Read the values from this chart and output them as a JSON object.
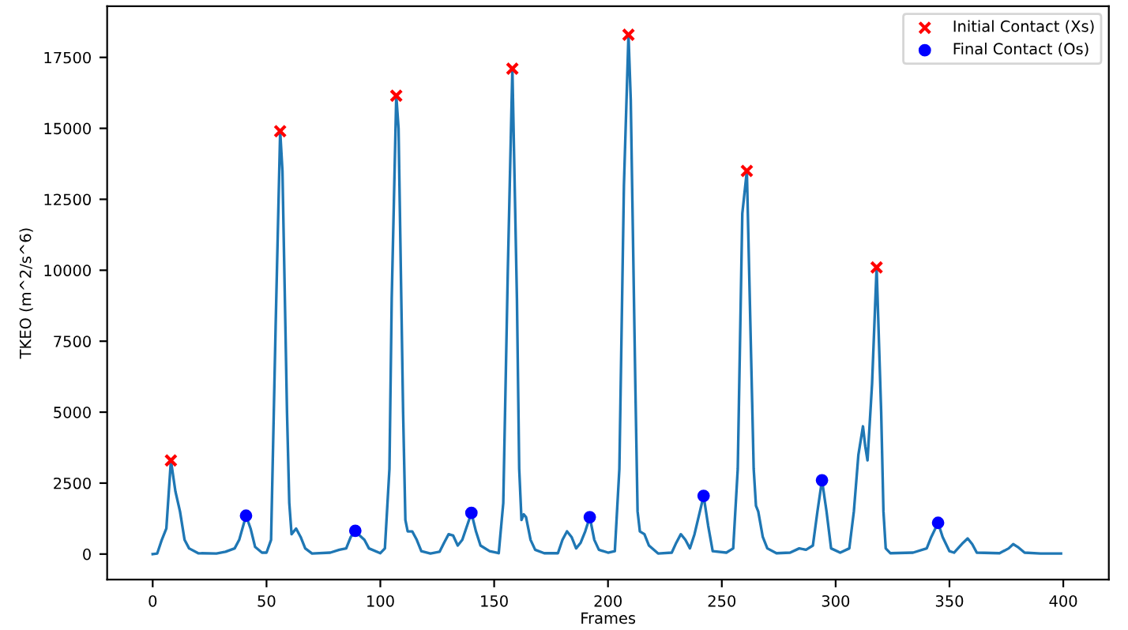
{
  "chart_data": {
    "type": "line",
    "xlabel": "Frames",
    "ylabel": "TKEO (m^2/s^6)",
    "xlim": [
      -20,
      420
    ],
    "ylim": [
      -900,
      19300
    ],
    "xticks": [
      0,
      50,
      100,
      150,
      200,
      250,
      300,
      350,
      400
    ],
    "yticks": [
      0,
      2500,
      5000,
      7500,
      10000,
      12500,
      15000,
      17500
    ],
    "grid": false,
    "legend": "top right",
    "series": [
      {
        "color": "#1f77b4",
        "marker": "none",
        "x": [
          0,
          2,
          4,
          6,
          8,
          10,
          12,
          14,
          16,
          20,
          28,
          32,
          36,
          38,
          41,
          43,
          45,
          48,
          50,
          52,
          54,
          56,
          57,
          59,
          60,
          61,
          63,
          65,
          67,
          70,
          78,
          82,
          85,
          87,
          89,
          91,
          93,
          95,
          100,
          102,
          104,
          105,
          107,
          108,
          110,
          111,
          112,
          114,
          116,
          118,
          122,
          126,
          128,
          130,
          132,
          134,
          136,
          140,
          142,
          144,
          148,
          152,
          154,
          156,
          158,
          160,
          161,
          162,
          163,
          164,
          166,
          168,
          172,
          178,
          180,
          182,
          184,
          186,
          188,
          190,
          192,
          194,
          196,
          200,
          203,
          205,
          207,
          209,
          210,
          212,
          213,
          214,
          216,
          218,
          222,
          228,
          230,
          232,
          234,
          236,
          238,
          242,
          244,
          246,
          252,
          255,
          257,
          259,
          261,
          262,
          264,
          265,
          266,
          268,
          270,
          274,
          280,
          284,
          287,
          290,
          292,
          294,
          296,
          298,
          302,
          306,
          308,
          310,
          312,
          313,
          314,
          316,
          318,
          320,
          321,
          322,
          324,
          334,
          340,
          342,
          345,
          347,
          350,
          352,
          356,
          358,
          360,
          362,
          372,
          376,
          378,
          380,
          383,
          390,
          399
        ],
        "values": [
          0,
          20,
          500,
          900,
          3300,
          2200,
          1500,
          500,
          200,
          30,
          20,
          80,
          200,
          500,
          1350,
          900,
          250,
          50,
          50,
          500,
          8000,
          14900,
          13500,
          5000,
          1800,
          700,
          900,
          600,
          200,
          20,
          50,
          150,
          200,
          600,
          820,
          650,
          500,
          200,
          30,
          200,
          3000,
          9000,
          16150,
          15000,
          5000,
          1200,
          800,
          800,
          500,
          100,
          20,
          80,
          400,
          700,
          650,
          300,
          500,
          1450,
          800,
          300,
          100,
          30,
          1800,
          10000,
          17100,
          9000,
          3000,
          1200,
          1400,
          1300,
          500,
          150,
          30,
          30,
          500,
          800,
          600,
          200,
          400,
          800,
          1300,
          500,
          150,
          50,
          100,
          3000,
          13000,
          18300,
          16000,
          6000,
          1500,
          800,
          700,
          300,
          20,
          50,
          400,
          700,
          500,
          200,
          700,
          2050,
          1000,
          100,
          50,
          200,
          3000,
          12000,
          13500,
          10000,
          3000,
          1700,
          1500,
          600,
          200,
          30,
          50,
          200,
          150,
          300,
          1500,
          2600,
          1500,
          200,
          50,
          200,
          1500,
          3500,
          4500,
          3800,
          3300,
          6000,
          10100,
          5000,
          1500,
          200,
          30,
          50,
          200,
          600,
          1100,
          600,
          100,
          50,
          400,
          550,
          350,
          50,
          30,
          200,
          350,
          250,
          50,
          20,
          20
        ]
      },
      {
        "type": "scatter",
        "name": "Initial Contact (Xs)",
        "color": "#ff0000",
        "marker": "cross",
        "x": [
          8,
          56,
          107,
          158,
          209,
          261,
          318
        ],
        "values": [
          3300,
          14900,
          16150,
          17100,
          18300,
          13500,
          10100
        ]
      },
      {
        "type": "scatter",
        "name": "Final Contact (Os)",
        "color": "#0000ff",
        "marker": "circle",
        "x": [
          41,
          89,
          140,
          192,
          242,
          294,
          345
        ],
        "values": [
          1350,
          820,
          1450,
          1300,
          2050,
          2600,
          1100
        ]
      }
    ]
  }
}
